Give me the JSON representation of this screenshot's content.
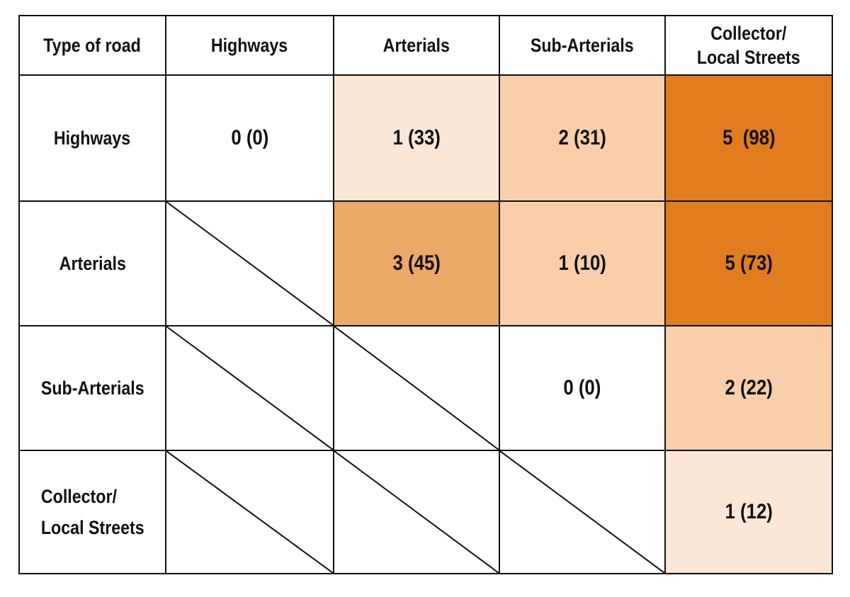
{
  "chart_data": {
    "type": "table",
    "title": "",
    "header": {
      "corner": "Type of road",
      "columns": [
        "Highways",
        "Arterials",
        "Sub-Arterials",
        "Collector/\nLocal Streets"
      ]
    },
    "rows": [
      {
        "label": "Highways",
        "cells": [
          {
            "text": "0 (0)",
            "value": 0,
            "count": 0,
            "color": "#ffffff"
          },
          {
            "text": "1 (33)",
            "value": 1,
            "count": 33,
            "color": "#fce6d5"
          },
          {
            "text": "2 (31)",
            "value": 2,
            "count": 31,
            "color": "#f8cfaa"
          },
          {
            "text": "5  (98)",
            "value": 5,
            "count": 98,
            "color": "#e27d1f"
          }
        ]
      },
      {
        "label": "Arterials",
        "cells": [
          {
            "text": null,
            "diagonal": true
          },
          {
            "text": "3 (45)",
            "value": 3,
            "count": 45,
            "color": "#eca866"
          },
          {
            "text": "1 (10)",
            "value": 1,
            "count": 10,
            "color": "#f8cfaa"
          },
          {
            "text": "5 (73)",
            "value": 5,
            "count": 73,
            "color": "#e27d1f"
          }
        ]
      },
      {
        "label": "Sub-Arterials",
        "cells": [
          {
            "text": null,
            "diagonal": true
          },
          {
            "text": null,
            "diagonal": true
          },
          {
            "text": "0 (0)",
            "value": 0,
            "count": 0,
            "color": "#ffffff"
          },
          {
            "text": "2 (22)",
            "value": 2,
            "count": 22,
            "color": "#f8cfaa"
          }
        ]
      },
      {
        "label": "Collector/\nLocal Streets",
        "cells": [
          {
            "text": null,
            "diagonal": true
          },
          {
            "text": null,
            "diagonal": true
          },
          {
            "text": null,
            "diagonal": true
          },
          {
            "text": "1 (12)",
            "value": 1,
            "count": 12,
            "color": "#fce6d5"
          }
        ]
      }
    ],
    "grid": true
  }
}
